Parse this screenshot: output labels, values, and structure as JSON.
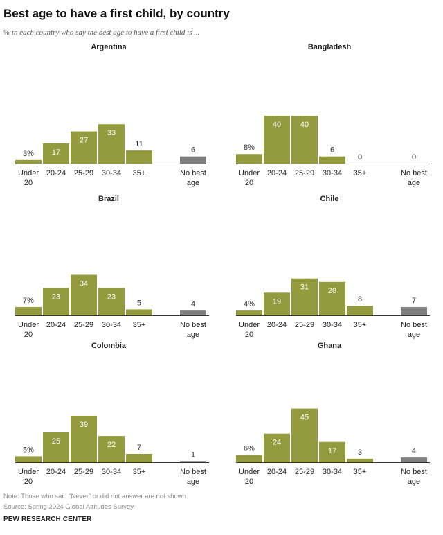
{
  "title": "Best age to have a first child, by country",
  "subtitle": "% in each country who say the best age to have a first child is ...",
  "note": "Note: Those who said “Never” or did not answer are not shown.",
  "source": "Source: Spring 2024 Global Attitudes Survey.",
  "brand": "PEW RESEARCH CENTER",
  "colors": {
    "bar": "#949b3e",
    "no_best": "#7f7f7f",
    "axis": "#333333",
    "label_in": "#ffffff",
    "label_out": "#333333"
  },
  "chart_data": [
    {
      "type": "bar",
      "title": "Argentina",
      "categories": [
        [
          "Under",
          "20"
        ],
        [
          "20-24"
        ],
        [
          "25-29"
        ],
        [
          "30-34"
        ],
        [
          "35+"
        ],
        [
          "No best",
          "age"
        ]
      ],
      "values": [
        3,
        17,
        27,
        33,
        11,
        6
      ],
      "labels": [
        "3%",
        "17",
        "27",
        "33",
        "11",
        "6"
      ]
    },
    {
      "type": "bar",
      "title": "Bangladesh",
      "categories": [
        [
          "Under",
          "20"
        ],
        [
          "20-24"
        ],
        [
          "25-29"
        ],
        [
          "30-34"
        ],
        [
          "35+"
        ],
        [
          "No best",
          "age"
        ]
      ],
      "values": [
        8,
        40,
        40,
        6,
        0,
        0
      ],
      "labels": [
        "8%",
        "40",
        "40",
        "6",
        "0",
        "0"
      ]
    },
    {
      "type": "bar",
      "title": "Brazil",
      "categories": [
        [
          "Under",
          "20"
        ],
        [
          "20-24"
        ],
        [
          "25-29"
        ],
        [
          "30-34"
        ],
        [
          "35+"
        ],
        [
          "No best",
          "age"
        ]
      ],
      "values": [
        7,
        23,
        34,
        23,
        5,
        4
      ],
      "labels": [
        "7%",
        "23",
        "34",
        "23",
        "5",
        "4"
      ]
    },
    {
      "type": "bar",
      "title": "Chile",
      "categories": [
        [
          "Under",
          "20"
        ],
        [
          "20-24"
        ],
        [
          "25-29"
        ],
        [
          "30-34"
        ],
        [
          "35+"
        ],
        [
          "No best",
          "age"
        ]
      ],
      "values": [
        4,
        19,
        31,
        28,
        8,
        7
      ],
      "labels": [
        "4%",
        "19",
        "31",
        "28",
        "8",
        "7"
      ]
    },
    {
      "type": "bar",
      "title": "Colombia",
      "categories": [
        [
          "Under",
          "20"
        ],
        [
          "20-24"
        ],
        [
          "25-29"
        ],
        [
          "30-34"
        ],
        [
          "35+"
        ],
        [
          "No best",
          "age"
        ]
      ],
      "values": [
        5,
        25,
        39,
        22,
        7,
        1
      ],
      "labels": [
        "5%",
        "25",
        "39",
        "22",
        "7",
        "1"
      ]
    },
    {
      "type": "bar",
      "title": "Ghana",
      "categories": [
        [
          "Under",
          "20"
        ],
        [
          "20-24"
        ],
        [
          "25-29"
        ],
        [
          "30-34"
        ],
        [
          "35+"
        ],
        [
          "No best",
          "age"
        ]
      ],
      "values": [
        6,
        24,
        45,
        17,
        3,
        4
      ],
      "labels": [
        "6%",
        "24",
        "45",
        "17",
        "3",
        "4"
      ]
    }
  ]
}
